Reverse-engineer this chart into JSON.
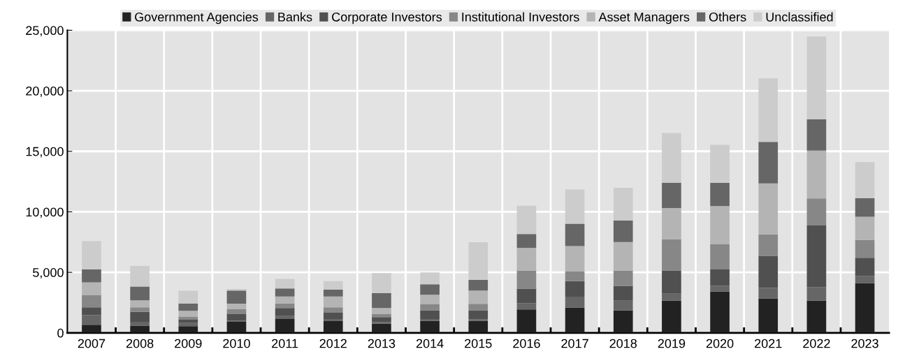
{
  "chart_data": {
    "type": "bar",
    "stacked": true,
    "categories": [
      "2007",
      "2008",
      "2009",
      "2010",
      "2011",
      "2012",
      "2013",
      "2014",
      "2015",
      "2016",
      "2017",
      "2018",
      "2019",
      "2020",
      "2021",
      "2022",
      "2023"
    ],
    "series": [
      {
        "name": "Government Agencies",
        "color": "#222222",
        "values": [
          670,
          600,
          560,
          910,
          1150,
          970,
          750,
          990,
          990,
          1940,
          2100,
          1850,
          2660,
          3410,
          2840,
          2660,
          4110
        ]
      },
      {
        "name": "Banks",
        "color": "#666666",
        "values": [
          790,
          320,
          260,
          100,
          240,
          180,
          140,
          160,
          120,
          500,
          890,
          810,
          580,
          480,
          870,
          1130,
          600
        ]
      },
      {
        "name": "Corporate Investors",
        "color": "#505050",
        "values": [
          650,
          810,
          260,
          540,
          660,
          520,
          420,
          710,
          750,
          1210,
          1290,
          1230,
          1920,
          1350,
          2660,
          5080,
          1490
        ]
      },
      {
        "name": "Institutional Investors",
        "color": "#878787",
        "values": [
          1030,
          380,
          240,
          400,
          380,
          440,
          240,
          500,
          540,
          1510,
          790,
          1270,
          2580,
          2100,
          1770,
          2240,
          1470
        ]
      },
      {
        "name": "Asset Managers",
        "color": "#b4b4b4",
        "values": [
          1030,
          580,
          500,
          460,
          580,
          890,
          500,
          790,
          1090,
          1870,
          2100,
          2340,
          2580,
          3130,
          4210,
          3950,
          1920
        ]
      },
      {
        "name": "Others",
        "color": "#666666",
        "values": [
          1070,
          1130,
          610,
          1090,
          660,
          560,
          1250,
          870,
          890,
          1130,
          1850,
          1770,
          2080,
          1920,
          3430,
          2580,
          1530
        ]
      },
      {
        "name": "Unclassified",
        "color": "#cccccc",
        "values": [
          2340,
          1710,
          1050,
          120,
          790,
          710,
          1630,
          970,
          3110,
          2340,
          2820,
          2720,
          4110,
          3140,
          5240,
          6850,
          2980
        ]
      }
    ],
    "ylim": [
      0,
      25000
    ],
    "yticks": [
      {
        "value": 0,
        "label": "0"
      },
      {
        "value": 5000,
        "label": "5,000"
      },
      {
        "value": 10000,
        "label": "10,000"
      },
      {
        "value": 15000,
        "label": "15,000"
      },
      {
        "value": 20000,
        "label": "20,000"
      },
      {
        "value": 25000,
        "label": "25,000"
      }
    ],
    "grid": true,
    "legend": "top"
  }
}
